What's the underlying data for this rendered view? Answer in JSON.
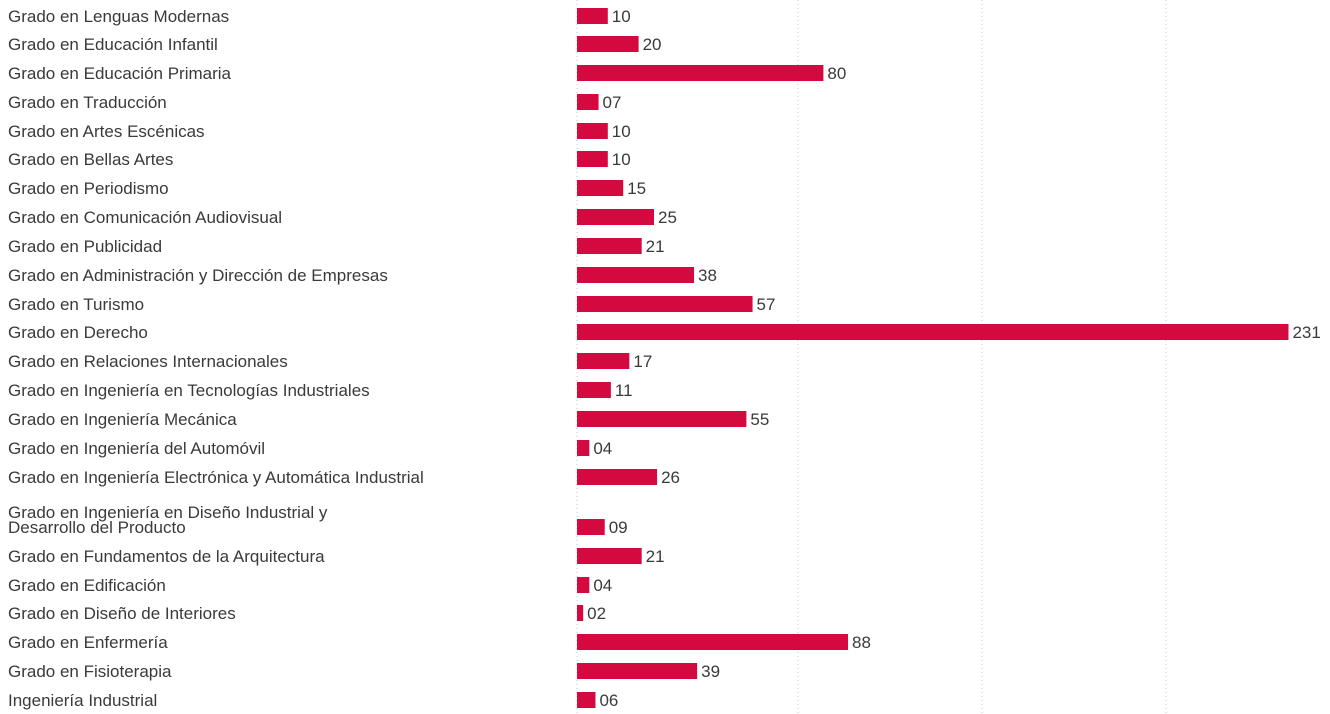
{
  "chart_data": {
    "type": "bar",
    "orientation": "horizontal",
    "bar_color": "#d4093f",
    "grid": true,
    "categories": [
      "Grado en Lenguas Modernas",
      "Grado en Educación Infantil",
      "Grado en Educación Primaria",
      "Grado en Traducción",
      "Grado en Artes Escénicas",
      "Grado en Bellas Artes",
      "Grado en Periodismo",
      "Grado en Comunicación Audiovisual",
      "Grado en Publicidad",
      "Grado en Administración y Dirección de Empresas",
      "Grado en Turismo",
      "Grado en Derecho",
      "Grado en Relaciones Internacionales",
      "Grado en Ingeniería en Tecnologías Industriales",
      "Grado en Ingeniería Mecánica",
      "Grado en Ingeniería del Automóvil",
      "Grado en Ingeniería Electrónica y Automática Industrial",
      "Grado en Ingeniería en Diseño Industrial y Desarrollo del Producto",
      "Grado en Fundamentos de la Arquitectura",
      "Grado en Edificación",
      "Grado en Diseño de Interiores",
      "Grado en Enfermería",
      "Grado en Fisioterapia",
      "Ingeniería Industrial"
    ],
    "category_label_lines": [
      [
        "Grado en Lenguas Modernas"
      ],
      [
        "Grado en Educación Infantil"
      ],
      [
        "Grado en Educación Primaria"
      ],
      [
        "Grado en Traducción"
      ],
      [
        "Grado en Artes Escénicas"
      ],
      [
        "Grado en Bellas Artes"
      ],
      [
        "Grado en Periodismo"
      ],
      [
        "Grado en Comunicación Audiovisual"
      ],
      [
        "Grado en Publicidad"
      ],
      [
        "Grado en Administración y Dirección de Empresas"
      ],
      [
        "Grado en Turismo"
      ],
      [
        "Grado en Derecho"
      ],
      [
        "Grado en Relaciones Internacionales"
      ],
      [
        "Grado en Ingeniería en Tecnologías Industriales"
      ],
      [
        "Grado en Ingeniería Mecánica"
      ],
      [
        "Grado en Ingeniería del Automóvil"
      ],
      [
        "Grado en Ingeniería Electrónica y Automática Industrial"
      ],
      [
        "Grado en Ingeniería en Diseño Industrial y",
        "Desarrollo del Producto"
      ],
      [
        "Grado en Fundamentos de la Arquitectura"
      ],
      [
        "Grado en Edificación"
      ],
      [
        "Grado en Diseño de Interiores"
      ],
      [
        "Grado en Enfermería"
      ],
      [
        "Grado en Fisioterapia"
      ],
      [
        "Ingeniería Industrial"
      ]
    ],
    "values": [
      10,
      20,
      80,
      7,
      10,
      10,
      15,
      25,
      21,
      38,
      57,
      231,
      17,
      11,
      55,
      4,
      26,
      9,
      21,
      4,
      2,
      88,
      39,
      6
    ],
    "value_labels": [
      "10",
      "20",
      "80",
      "07",
      "10",
      "10",
      "15",
      "25",
      "21",
      "38",
      "57",
      "231",
      "17",
      "11",
      "55",
      "04",
      "26",
      "09",
      "21",
      "04",
      "02",
      "88",
      "39",
      "06"
    ]
  }
}
